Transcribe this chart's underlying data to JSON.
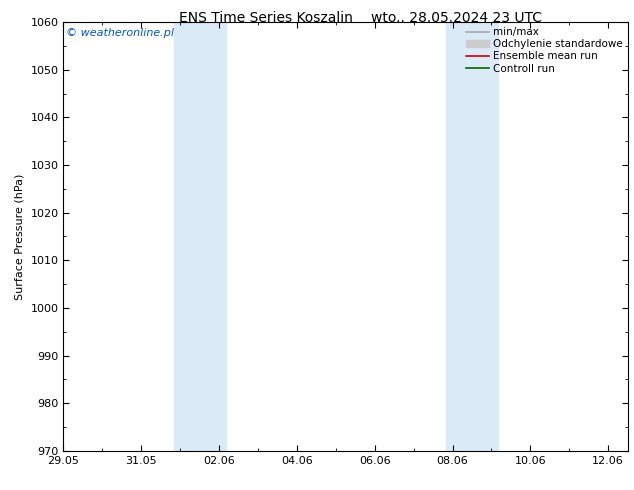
{
  "title": "ENS Time Series Koszalin",
  "title_date": "wto.. 28.05.2024 23 UTC",
  "ylabel": "Surface Pressure (hPa)",
  "ylim": [
    970,
    1060
  ],
  "yticks": [
    970,
    980,
    990,
    1000,
    1010,
    1020,
    1030,
    1040,
    1050,
    1060
  ],
  "xtick_labels": [
    "29.05",
    "31.05",
    "02.06",
    "04.06",
    "06.06",
    "08.06",
    "10.06",
    "12.06"
  ],
  "xtick_positions": [
    0,
    2,
    4,
    6,
    8,
    10,
    12,
    14
  ],
  "xlim": [
    0,
    14.5
  ],
  "shaded_bands": [
    {
      "x_start": 2.83,
      "x_end": 4.17
    },
    {
      "x_start": 9.83,
      "x_end": 11.17
    }
  ],
  "shade_color": "#daeaf7",
  "watermark": "© weatheronline.pl",
  "watermark_color": "#0055cc",
  "bg_color": "#ffffff",
  "legend_items": [
    {
      "label": "min/max",
      "color": "#aaaaaa",
      "lw": 1.2,
      "type": "line"
    },
    {
      "label": "Odchylenie standardowe",
      "color": "#cccccc",
      "lw": 5,
      "type": "band"
    },
    {
      "label": "Ensemble mean run",
      "color": "#cc0000",
      "lw": 1.2,
      "type": "line"
    },
    {
      "label": "Controll run",
      "color": "#006600",
      "lw": 1.2,
      "type": "line"
    }
  ],
  "grid_color": "#dddddd",
  "tick_label_fontsize": 8,
  "axis_label_fontsize": 8,
  "title_fontsize": 10,
  "legend_fontsize": 7.5
}
